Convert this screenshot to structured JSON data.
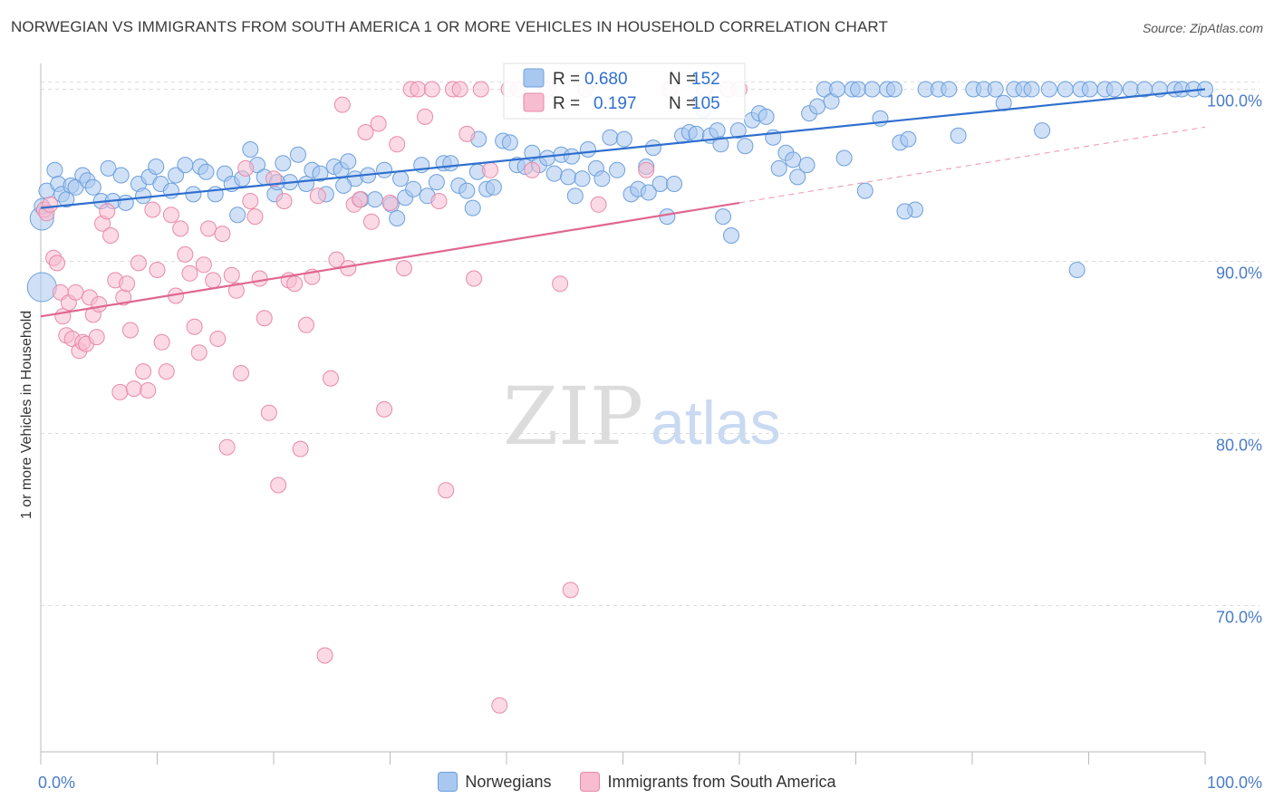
{
  "header": {
    "title": "NORWEGIAN VS IMMIGRANTS FROM SOUTH AMERICA 1 OR MORE VEHICLES IN HOUSEHOLD CORRELATION CHART",
    "source": "Source: ZipAtlas.com"
  },
  "watermark": {
    "zip": "ZIP",
    "atlas": "atlas"
  },
  "colors": {
    "blue_fill": "#a9c8f0",
    "blue_stroke": "#6d9fdc",
    "blue_line": "#2f6fcf",
    "pink_fill": "#f7bcd0",
    "pink_stroke": "#e98aa8",
    "pink_line": "#e06690",
    "axis_text": "#4a7cc7",
    "grid": "#dddddd"
  },
  "legend": [
    {
      "label": "Norwegians",
      "series": 0
    },
    {
      "label": "Immigrants from South America",
      "series": 1
    }
  ],
  "stats": [
    {
      "r_label": "R =",
      "r_value": "0.680",
      "n_label": "N =",
      "n_value": "152"
    },
    {
      "r_label": "R =",
      "r_value": "0.197",
      "n_label": "N =",
      "n_value": "105"
    }
  ],
  "chart_data": {
    "type": "scatter",
    "ylabel": "1 or more Vehicles in Household",
    "xlim": [
      0,
      100
    ],
    "ylim": [
      61.5,
      101.5
    ],
    "x_tick_labels": [
      {
        "x": 0,
        "label": "0.0%"
      },
      {
        "x": 100,
        "label": "100.0%"
      }
    ],
    "y_tick_labels": [
      {
        "y": 70,
        "label": "70.0%"
      },
      {
        "y": 80,
        "label": "80.0%"
      },
      {
        "y": 90,
        "label": "90.0%"
      },
      {
        "y": 100,
        "label": "100.0%"
      }
    ],
    "grid": true,
    "series": [
      {
        "name": "Norwegians",
        "trend": {
          "x0": 0,
          "y0": 93.1,
          "x1": 100,
          "y1": 100.0
        },
        "points": [
          [
            0.1,
            88.5
          ],
          [
            0.1,
            92.5
          ],
          [
            0.1,
            93.2
          ],
          [
            0.5,
            94.1
          ],
          [
            1.2,
            95.3
          ],
          [
            1.5,
            94.5
          ],
          [
            1.8,
            93.9
          ],
          [
            2.2,
            93.6
          ],
          [
            2.6,
            94.4
          ],
          [
            3.0,
            94.3
          ],
          [
            3.6,
            95.0
          ],
          [
            4.0,
            94.7
          ],
          [
            4.5,
            94.3
          ],
          [
            5.2,
            93.5
          ],
          [
            5.8,
            95.4
          ],
          [
            6.2,
            93.5
          ],
          [
            6.9,
            95.0
          ],
          [
            7.3,
            93.4
          ],
          [
            8.4,
            94.5
          ],
          [
            9.3,
            94.9
          ],
          [
            9.9,
            95.5
          ],
          [
            10.3,
            94.5
          ],
          [
            11.2,
            94.1
          ],
          [
            11.6,
            95.0
          ],
          [
            12.4,
            95.6
          ],
          [
            13.1,
            93.9
          ],
          [
            13.7,
            95.5
          ],
          [
            14.2,
            95.2
          ],
          [
            15.0,
            93.9
          ],
          [
            15.8,
            95.1
          ],
          [
            16.4,
            94.5
          ],
          [
            17.3,
            94.8
          ],
          [
            18.0,
            96.5
          ],
          [
            18.6,
            95.6
          ],
          [
            19.2,
            94.9
          ],
          [
            20.1,
            93.9
          ],
          [
            20.8,
            95.7
          ],
          [
            21.4,
            94.6
          ],
          [
            22.1,
            96.2
          ],
          [
            22.8,
            94.5
          ],
          [
            23.3,
            95.3
          ],
          [
            24.0,
            95.1
          ],
          [
            24.5,
            93.9
          ],
          [
            25.2,
            95.5
          ],
          [
            25.8,
            95.3
          ],
          [
            26.4,
            95.8
          ],
          [
            27.0,
            94.8
          ],
          [
            27.5,
            93.6
          ],
          [
            28.1,
            95.0
          ],
          [
            28.7,
            93.6
          ],
          [
            29.5,
            95.3
          ],
          [
            30.1,
            93.3
          ],
          [
            30.6,
            92.5
          ],
          [
            31.3,
            93.7
          ],
          [
            32.0,
            94.2
          ],
          [
            32.7,
            95.6
          ],
          [
            33.2,
            93.8
          ],
          [
            34.0,
            94.6
          ],
          [
            34.6,
            95.7
          ],
          [
            35.2,
            95.7
          ],
          [
            35.9,
            94.4
          ],
          [
            36.6,
            94.1
          ],
          [
            37.1,
            93.1
          ],
          [
            37.6,
            97.1
          ],
          [
            38.3,
            94.2
          ],
          [
            38.9,
            94.3
          ],
          [
            39.7,
            97.0
          ],
          [
            40.3,
            96.9
          ],
          [
            40.9,
            95.6
          ],
          [
            41.6,
            95.5
          ],
          [
            42.2,
            96.3
          ],
          [
            42.8,
            95.6
          ],
          [
            43.5,
            96.0
          ],
          [
            44.1,
            95.1
          ],
          [
            44.7,
            96.2
          ],
          [
            45.3,
            94.9
          ],
          [
            45.9,
            93.8
          ],
          [
            46.5,
            94.8
          ],
          [
            47.0,
            96.5
          ],
          [
            47.7,
            95.4
          ],
          [
            48.2,
            94.8
          ],
          [
            48.9,
            97.2
          ],
          [
            49.5,
            95.3
          ],
          [
            50.1,
            97.1
          ],
          [
            50.7,
            93.9
          ],
          [
            51.3,
            94.2
          ],
          [
            52.0,
            95.5
          ],
          [
            52.6,
            96.6
          ],
          [
            53.2,
            94.5
          ],
          [
            53.8,
            92.6
          ],
          [
            54.4,
            94.5
          ],
          [
            55.1,
            97.3
          ],
          [
            55.7,
            97.5
          ],
          [
            56.3,
            97.4
          ],
          [
            56.9,
            98.8
          ],
          [
            57.5,
            97.3
          ],
          [
            58.1,
            97.6
          ],
          [
            58.6,
            92.6
          ],
          [
            59.3,
            91.5
          ],
          [
            59.9,
            97.6
          ],
          [
            60.5,
            96.7
          ],
          [
            61.1,
            98.2
          ],
          [
            61.7,
            98.6
          ],
          [
            62.3,
            98.4
          ],
          [
            62.9,
            97.2
          ],
          [
            63.4,
            95.4
          ],
          [
            64.0,
            96.3
          ],
          [
            64.6,
            95.9
          ],
          [
            65.0,
            94.9
          ],
          [
            66.0,
            98.6
          ],
          [
            66.7,
            99.0
          ],
          [
            67.3,
            100.0
          ],
          [
            67.9,
            99.3
          ],
          [
            68.4,
            100.0
          ],
          [
            69.0,
            96.0
          ],
          [
            69.7,
            100.0
          ],
          [
            70.2,
            100.0
          ],
          [
            70.8,
            94.1
          ],
          [
            71.4,
            100.0
          ],
          [
            72.1,
            98.3
          ],
          [
            72.7,
            100.0
          ],
          [
            73.3,
            100.0
          ],
          [
            73.8,
            96.9
          ],
          [
            74.5,
            97.1
          ],
          [
            75.1,
            93.0
          ],
          [
            76.0,
            100.0
          ],
          [
            77.1,
            100.0
          ],
          [
            78.0,
            100.0
          ],
          [
            78.8,
            97.3
          ],
          [
            80.1,
            100.0
          ],
          [
            81.0,
            100.0
          ],
          [
            82.0,
            100.0
          ],
          [
            82.7,
            99.2
          ],
          [
            83.6,
            100.0
          ],
          [
            84.4,
            100.0
          ],
          [
            85.1,
            100.0
          ],
          [
            86.0,
            97.6
          ],
          [
            86.6,
            100.0
          ],
          [
            88.0,
            100.0
          ],
          [
            89.3,
            100.0
          ],
          [
            90.1,
            100.0
          ],
          [
            91.4,
            100.0
          ],
          [
            92.2,
            100.0
          ],
          [
            93.6,
            100.0
          ],
          [
            94.8,
            100.0
          ],
          [
            96.1,
            100.0
          ],
          [
            97.4,
            100.0
          ],
          [
            98.0,
            100.0
          ],
          [
            99.0,
            100.0
          ],
          [
            100.0,
            100.0
          ],
          [
            20.3,
            94.6
          ],
          [
            45.6,
            96.1
          ],
          [
            52.2,
            94.0
          ],
          [
            65.8,
            95.6
          ],
          [
            26.0,
            94.4
          ],
          [
            37.5,
            95.2
          ],
          [
            58.4,
            96.8
          ],
          [
            74.2,
            92.9
          ],
          [
            8.8,
            93.8
          ],
          [
            16.9,
            92.7
          ],
          [
            89.0,
            89.5
          ],
          [
            30.9,
            94.8
          ]
        ]
      },
      {
        "name": "Immigrants from South America",
        "trend": {
          "x0": 0,
          "y0": 86.8,
          "x1": 60,
          "y1": 93.4
        },
        "trend_ext": {
          "x0": 60,
          "y0": 93.4,
          "x1": 100,
          "y1": 97.8
        },
        "points": [
          [
            0.3,
            93.0
          ],
          [
            0.5,
            92.8
          ],
          [
            0.8,
            93.3
          ],
          [
            1.1,
            90.2
          ],
          [
            1.4,
            89.9
          ],
          [
            1.7,
            88.2
          ],
          [
            1.9,
            86.8
          ],
          [
            2.2,
            85.7
          ],
          [
            2.4,
            87.6
          ],
          [
            2.7,
            85.5
          ],
          [
            3.0,
            88.2
          ],
          [
            3.3,
            84.8
          ],
          [
            3.6,
            85.3
          ],
          [
            3.9,
            85.2
          ],
          [
            4.2,
            87.9
          ],
          [
            4.5,
            86.9
          ],
          [
            4.8,
            85.6
          ],
          [
            5.0,
            87.5
          ],
          [
            5.3,
            92.2
          ],
          [
            5.7,
            92.9
          ],
          [
            6.0,
            91.5
          ],
          [
            6.4,
            88.9
          ],
          [
            6.8,
            82.4
          ],
          [
            7.1,
            87.9
          ],
          [
            7.4,
            88.7
          ],
          [
            7.7,
            86.0
          ],
          [
            8.0,
            82.6
          ],
          [
            8.4,
            89.9
          ],
          [
            8.8,
            83.6
          ],
          [
            9.2,
            82.5
          ],
          [
            9.6,
            93.0
          ],
          [
            10.0,
            89.5
          ],
          [
            10.4,
            85.3
          ],
          [
            10.8,
            83.6
          ],
          [
            11.2,
            92.7
          ],
          [
            11.6,
            88.0
          ],
          [
            12.0,
            91.9
          ],
          [
            12.4,
            90.4
          ],
          [
            12.8,
            89.3
          ],
          [
            13.2,
            86.2
          ],
          [
            13.6,
            84.7
          ],
          [
            14.0,
            89.8
          ],
          [
            14.4,
            91.9
          ],
          [
            14.8,
            88.9
          ],
          [
            15.2,
            85.5
          ],
          [
            15.6,
            91.6
          ],
          [
            16.0,
            79.2
          ],
          [
            16.4,
            89.2
          ],
          [
            16.8,
            88.3
          ],
          [
            17.2,
            83.5
          ],
          [
            17.6,
            95.4
          ],
          [
            18.0,
            93.5
          ],
          [
            18.4,
            92.6
          ],
          [
            18.8,
            89.0
          ],
          [
            19.2,
            86.7
          ],
          [
            19.6,
            81.2
          ],
          [
            20.0,
            94.8
          ],
          [
            20.4,
            77.0
          ],
          [
            20.9,
            93.5
          ],
          [
            21.3,
            88.9
          ],
          [
            21.8,
            88.7
          ],
          [
            22.3,
            79.1
          ],
          [
            22.8,
            86.3
          ],
          [
            23.3,
            89.1
          ],
          [
            23.8,
            93.8
          ],
          [
            24.4,
            67.1
          ],
          [
            24.9,
            83.2
          ],
          [
            25.4,
            90.1
          ],
          [
            25.9,
            99.1
          ],
          [
            26.4,
            89.6
          ],
          [
            26.9,
            93.3
          ],
          [
            27.4,
            93.6
          ],
          [
            27.9,
            97.5
          ],
          [
            28.4,
            92.3
          ],
          [
            29.0,
            98.0
          ],
          [
            29.5,
            81.4
          ],
          [
            30.0,
            93.4
          ],
          [
            30.6,
            96.8
          ],
          [
            31.2,
            89.6
          ],
          [
            31.8,
            100.0
          ],
          [
            32.4,
            100.0
          ],
          [
            33.0,
            98.4
          ],
          [
            33.6,
            100.0
          ],
          [
            34.2,
            93.5
          ],
          [
            34.8,
            76.7
          ],
          [
            35.4,
            100.0
          ],
          [
            36.0,
            100.0
          ],
          [
            36.6,
            97.4
          ],
          [
            37.2,
            89.0
          ],
          [
            37.8,
            100.0
          ],
          [
            38.6,
            95.3
          ],
          [
            39.4,
            64.2
          ],
          [
            40.2,
            100.0
          ],
          [
            41.0,
            100.0
          ],
          [
            42.2,
            95.3
          ],
          [
            43.5,
            100.0
          ],
          [
            44.6,
            88.7
          ],
          [
            45.5,
            70.9
          ],
          [
            46.8,
            100.0
          ],
          [
            47.9,
            93.3
          ],
          [
            52.0,
            95.3
          ],
          [
            54.0,
            100.0
          ],
          [
            57.0,
            100.0
          ],
          [
            59.0,
            100.0
          ],
          [
            60.0,
            100.0
          ]
        ]
      }
    ]
  }
}
